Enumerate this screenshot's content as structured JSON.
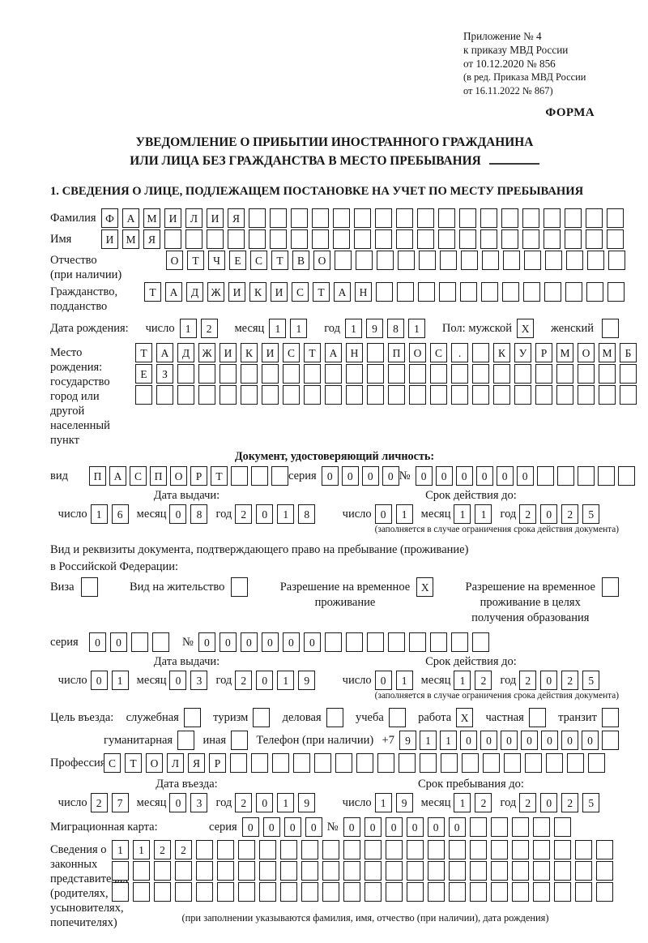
{
  "header": {
    "annex_lines": [
      "Приложение № 4",
      "к приказу МВД России",
      "от 10.12.2020 № 856",
      "(в ред. Приказа МВД России",
      "от 16.11.2022 № 867)"
    ],
    "forma": "ФОРМА"
  },
  "title": {
    "line1": "УВЕДОМЛЕНИЕ О ПРИБЫТИИ ИНОСТРАННОГО ГРАЖДАНИНА",
    "line2": "ИЛИ ЛИЦА БЕЗ ГРАЖДАНСТВА В МЕСТО ПРЕБЫВАНИЯ"
  },
  "section1": "1. СВЕДЕНИЯ О ЛИЦЕ, ПОДЛЕЖАЩЕМ ПОСТАНОВКЕ НА УЧЕТ ПО МЕСТУ ПРЕБЫВАНИЯ",
  "words": {
    "day": "число",
    "month": "месяц",
    "year": "год",
    "series": "серия",
    "no": "№",
    "issue_date": "Дата выдачи:",
    "valid_until": "Срок действия до:",
    "limit_note": "(заполняется в случае ограничения срока действия документа)"
  },
  "fields": {
    "surname": {
      "label": "Фамилия",
      "boxes": {
        "t": "ФАМИЛИЯ",
        "n": 25
      }
    },
    "given_name": {
      "label": "Имя",
      "boxes": {
        "t": "ИМЯ",
        "n": 25
      }
    },
    "patronymic": {
      "label1": "Отчество",
      "label2": "(при наличии)",
      "boxes": {
        "t": "ОТЧЕСТВО",
        "n": 22
      }
    },
    "citizenship": {
      "label1": "Гражданство,",
      "label2": "подданство",
      "boxes": {
        "t": "ТАДЖИКИСТАН",
        "n": 23
      }
    },
    "birth_date": {
      "label": "Дата рождения:",
      "day": {
        "t": "12",
        "n": 2
      },
      "month": {
        "t": "11",
        "n": 2
      },
      "year": {
        "t": "1981",
        "n": 4
      }
    },
    "sex": {
      "label_male": "Пол: мужской",
      "male": {
        "t": "X",
        "n": 1
      },
      "label_female": "женский",
      "female": {
        "t": "",
        "n": 1
      }
    },
    "birth_place": {
      "label1": "Место рождения:",
      "label2": "государство",
      "label3": "город или другой",
      "label4": "населенный пункт",
      "row1": {
        "t": "ТАДЖИКИСТАН ПОС. КУРМОМБ",
        "n": 24
      },
      "row2": {
        "t": "ЕЗ",
        "n": 24
      },
      "row3": {
        "t": "",
        "n": 24
      }
    },
    "identity_doc": {
      "heading": "Документ, удостоверяющий личность:",
      "kind_label": "вид",
      "kind": {
        "t": "ПАСПОРТ",
        "n": 10
      },
      "series": {
        "t": "0000",
        "n": 4
      },
      "number": {
        "t": "000000",
        "n": 11
      },
      "issue": {
        "day": {
          "t": "16",
          "n": 2
        },
        "month": {
          "t": "08",
          "n": 2
        },
        "year": {
          "t": "2018",
          "n": 4
        }
      },
      "valid": {
        "day": {
          "t": "01",
          "n": 2
        },
        "month": {
          "t": "11",
          "n": 2
        },
        "year": {
          "t": "2025",
          "n": 4
        }
      }
    },
    "residence_doc": {
      "intro1": "Вид и реквизиты документа, подтверждающего право на пребывание (проживание)",
      "intro2": "в Российской Федерации:",
      "visa_label": "Виза",
      "visa": {
        "t": "",
        "n": 1
      },
      "residence_permit_label": "Вид на жительство",
      "residence_permit": {
        "t": "",
        "n": 1
      },
      "temp_permit_line1": "Разрешение на временное",
      "temp_permit_line2": "проживание",
      "temp_permit": {
        "t": "X",
        "n": 1
      },
      "edu_permit_line1": "Разрешение на временное",
      "edu_permit_line2": "проживание в целях",
      "edu_permit_line3": "получения образования",
      "edu_permit": {
        "t": "",
        "n": 1
      },
      "series": {
        "t": "00",
        "n": 4
      },
      "number": {
        "t": "000000",
        "n": 14
      },
      "issue": {
        "day": {
          "t": "01",
          "n": 2
        },
        "month": {
          "t": "03",
          "n": 2
        },
        "year": {
          "t": "2019",
          "n": 4
        }
      },
      "valid": {
        "day": {
          "t": "01",
          "n": 2
        },
        "month": {
          "t": "12",
          "n": 2
        },
        "year": {
          "t": "2025",
          "n": 4
        }
      }
    },
    "purpose": {
      "label": "Цель въезда:",
      "opt1_label": "служебная",
      "opt1": {
        "t": "",
        "n": 1
      },
      "opt2_label": "туризм",
      "opt2": {
        "t": "",
        "n": 1
      },
      "opt3_label": "деловая",
      "opt3": {
        "t": "",
        "n": 1
      },
      "opt4_label": "учеба",
      "opt4": {
        "t": "",
        "n": 1
      },
      "opt5_label": "работа",
      "opt5": {
        "t": "X",
        "n": 1
      },
      "opt6_label": "частная",
      "opt6": {
        "t": "",
        "n": 1
      },
      "opt7_label": "транзит",
      "opt7": {
        "t": "",
        "n": 1
      },
      "opt8_label": "гуманитарная",
      "opt8": {
        "t": "",
        "n": 1
      },
      "opt9_label": "иная",
      "opt9": {
        "t": "",
        "n": 1
      },
      "phone_label": "Телефон (при наличии)",
      "phone_prefix": "+7",
      "phone": {
        "t": "9110000000",
        "n": 11
      }
    },
    "profession": {
      "label": "Профессия",
      "boxes": {
        "t": "СТОЛЯР",
        "n": 24
      }
    },
    "entry": {
      "date_heading": "Дата въезда:",
      "stay_heading": "Срок пребывания до:",
      "date": {
        "day": {
          "t": "27",
          "n": 2
        },
        "month": {
          "t": "03",
          "n": 2
        },
        "year": {
          "t": "2019",
          "n": 4
        }
      },
      "stay": {
        "day": {
          "t": "19",
          "n": 2
        },
        "month": {
          "t": "12",
          "n": 2
        },
        "year": {
          "t": "2025",
          "n": 4
        }
      }
    },
    "migration_card": {
      "label": "Миграционная карта:",
      "series": {
        "t": "0000",
        "n": 4
      },
      "number": {
        "t": "000000",
        "n": 11
      }
    },
    "representatives": {
      "label1": "Сведения о",
      "label2": "законных",
      "label3": "представителях",
      "label4": "(родителях,",
      "label5": "усыновителях,",
      "label6": "попечителях)",
      "row1": {
        "t": "1122",
        "n": 24
      },
      "row2": {
        "t": "",
        "n": 24
      },
      "row3": {
        "t": "",
        "n": 24
      },
      "note": "(при заполнении указываются фамилия, имя, отчество (при наличии), дата рождения)"
    }
  }
}
